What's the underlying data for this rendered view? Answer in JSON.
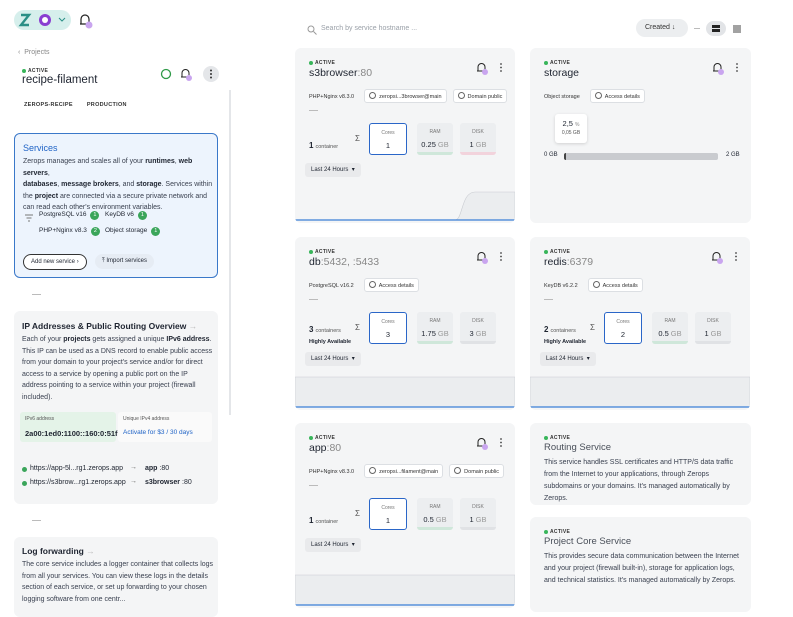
{
  "topbar": {
    "search_placeholder": "Search by service hostname ...",
    "sort": "Created"
  },
  "project": {
    "breadcrumb": "Projects",
    "status": "ACTIVE",
    "name": "recipe-filament",
    "tags": [
      "ZEROPS-RECIPE",
      "PRODUCTION"
    ]
  },
  "services_panel": {
    "title": "Services",
    "description": [
      "Zerops manages and scales all of your ",
      "runtimes",
      ", ",
      "web servers",
      ",\n",
      "databases",
      ", ",
      "message brokers",
      ", and ",
      "storage",
      ". Services within the ",
      "project",
      " are connected via a secure private network and can read each other's environment variables."
    ],
    "chips": [
      {
        "label": "PostgreSQL v16",
        "count": 1
      },
      {
        "label": "KeyDB v6",
        "count": 1
      },
      {
        "label": "PHP+Nginx v8.3",
        "count": 2
      },
      {
        "label": "Object storage",
        "count": 1
      }
    ],
    "buttons": [
      "Add new service",
      "Import services"
    ]
  },
  "ip_panel": {
    "title": "IP Addresses & Public Routing Overview",
    "description": [
      "Each of your ",
      "projects",
      " gets assigned a unique ",
      "IPv6 address",
      ". This IP can be used as a DNS record to enable public access from your domain to your project's service and/or for direct access to a service by opening a public port on the IP address pointing to a service within your project (firewall included)."
    ],
    "ipv6": {
      "label": "IPv6 address",
      "value": "2a00:1ed0:1100::160:0:51f"
    },
    "ipv4": {
      "label": "Unique IPv4 address",
      "action": "Activate for $3 / 30 days"
    },
    "routes": [
      {
        "url": "https://app-5l...rg1.zerops.app",
        "service": "app",
        "port": ":80"
      },
      {
        "url": "https://s3brow...rg1.zerops.app",
        "service": "s3browser",
        "port": ":80"
      }
    ]
  },
  "log_panel": {
    "title": "Log forwarding",
    "description": "The core service includes a logger container that collects logs from all your services. You can view these logs in the details section of each service, or set up forwarding to your chosen logging software from one centr..."
  },
  "service_cards": [
    {
      "status": "ACTIVE",
      "name": "s3browser",
      "port": ":80",
      "tags": [
        "PHP+Nginx v8.3.0",
        "zeropsi...3browser@main",
        "Domain public"
      ],
      "containers": {
        "count": 1,
        "label": "container"
      },
      "resources": [
        {
          "label": "Cores",
          "value": 1
        },
        {
          "label": "RAM",
          "value": 0.25,
          "unit": "GB"
        },
        {
          "label": "DISK",
          "value": 1,
          "unit": "GB"
        }
      ],
      "period": "Last 24 Hours"
    },
    {
      "status": "ACTIVE",
      "name": "db",
      "port": ":5432, :5433",
      "tags": [
        "PostgreSQL v16.2",
        "Access details"
      ],
      "containers": {
        "count": 3,
        "label": "containers",
        "note": "Highly Available"
      },
      "resources": [
        {
          "label": "Cores",
          "value": 3
        },
        {
          "label": "RAM",
          "value": 1.75,
          "unit": "GB"
        },
        {
          "label": "DISK",
          "value": 3,
          "unit": "GB"
        }
      ],
      "period": "Last 24 Hours"
    },
    {
      "status": "ACTIVE",
      "name": "redis",
      "port": ":6379",
      "tags": [
        "KeyDB v6.2.2",
        "Access details"
      ],
      "containers": {
        "count": 2,
        "label": "containers",
        "note": "Highly Available"
      },
      "resources": [
        {
          "label": "Cores",
          "value": 2
        },
        {
          "label": "RAM",
          "value": 0.5,
          "unit": "GB"
        },
        {
          "label": "DISK",
          "value": 1,
          "unit": "GB"
        }
      ],
      "period": "Last 24 Hours"
    },
    {
      "status": "ACTIVE",
      "name": "app",
      "port": ":80",
      "tags": [
        "PHP+Nginx v8.3.0",
        "zeropsi...filament@main",
        "Domain public"
      ],
      "containers": {
        "count": 1,
        "label": "container"
      },
      "resources": [
        {
          "label": "Cores",
          "value": 1
        },
        {
          "label": "RAM",
          "value": 0.5,
          "unit": "GB"
        },
        {
          "label": "DISK",
          "value": 1,
          "unit": "GB"
        }
      ],
      "period": "Last 24 Hours"
    }
  ],
  "storage_card": {
    "status": "ACTIVE",
    "name": "storage",
    "tags": [
      "Object storage",
      "Access details"
    ],
    "usage": {
      "percent": "2,5",
      "unit": "%",
      "used": "0,05 GB"
    },
    "scale": [
      "0 GB",
      "2 GB"
    ]
  },
  "info_cards": [
    {
      "status": "ACTIVE",
      "title": "Routing Service",
      "description": "This service handles SSL certificates and HTTP/S data traffic from the Internet to your applications, through Zerops subdomains or your domains. It's managed automatically by Zerops."
    },
    {
      "status": "ACTIVE",
      "title": "Project Core Service",
      "description": "This provides secure data communication between the Internet and your project (firewall built-in), storage for application logs, and technical statistics. It's managed automatically by Zerops."
    }
  ]
}
